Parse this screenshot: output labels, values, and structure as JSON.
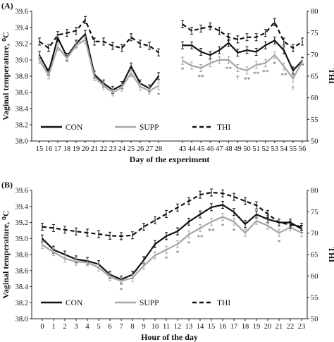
{
  "colors": {
    "con": "#111111",
    "supp": "#a6a6a6",
    "thi": "#111111"
  },
  "chart_data": [
    {
      "type": "line",
      "panel_label": "(A)",
      "xlabel": "Day of the experiment",
      "ylabel": "Vaginal temperature, ⁰C",
      "y2label": "THI",
      "ylim": [
        38.0,
        39.6
      ],
      "y_ticks": [
        "38.0",
        "38.2",
        "38.4",
        "38.6",
        "38.8",
        "39.0",
        "39.2",
        "39.4",
        "39.6"
      ],
      "y2lim": [
        50,
        80
      ],
      "y2_ticks": [
        "50",
        "55",
        "60",
        "65",
        "70",
        "75",
        "80"
      ],
      "grid": false,
      "legend": "bottom-left",
      "legend_entries": [
        "CON",
        "SUPP",
        "THI"
      ],
      "x_segments": [
        [
          15,
          16,
          17,
          18,
          19,
          20,
          21,
          22,
          23,
          24,
          25,
          26,
          27,
          28
        ],
        [
          43,
          44,
          45,
          46,
          47,
          48,
          49,
          50,
          51,
          52,
          53,
          54,
          55,
          56
        ]
      ],
      "x_tick_labels": [
        [
          "15",
          "16",
          "17",
          "18",
          "19",
          "20",
          "21",
          "22",
          "23",
          "24",
          "25",
          "26",
          "27",
          "28"
        ],
        [
          "43",
          "44",
          "45",
          "46",
          "47",
          "48",
          "49",
          "50",
          "51",
          "52",
          "53",
          "54",
          "55",
          "56"
        ]
      ],
      "series": [
        {
          "name": "CON",
          "axis": "left",
          "segments": [
            [
              39.06,
              38.85,
              39.27,
              39.04,
              39.2,
              39.32,
              38.82,
              38.71,
              38.63,
              38.69,
              38.92,
              38.71,
              38.65,
              38.8
            ],
            [
              39.18,
              39.18,
              39.1,
              39.06,
              39.12,
              39.21,
              39.09,
              39.12,
              39.1,
              39.18,
              39.24,
              39.12,
              38.87,
              38.99
            ]
          ]
        },
        {
          "name": "SUPP",
          "axis": "left",
          "segments": [
            [
              39.0,
              38.81,
              39.16,
              39.02,
              39.18,
              39.25,
              38.79,
              38.68,
              38.6,
              38.66,
              38.84,
              38.67,
              38.62,
              38.68
            ],
            [
              38.99,
              38.93,
              38.9,
              38.96,
              39.0,
              39.0,
              38.9,
              38.87,
              38.94,
              38.96,
              39.06,
              38.92,
              38.77,
              38.98
            ]
          ]
        },
        {
          "name": "THI",
          "axis": "right",
          "segments": [
            [
              73,
              71.5,
              74.5,
              75,
              75.5,
              78,
              73,
              73,
              72,
              71.5,
              74,
              72.5,
              72,
              70.5
            ],
            [
              77,
              75.5,
              76,
              76.5,
              75.5,
              74,
              73.5,
              74,
              74,
              75,
              77.5,
              73,
              71.5,
              73
            ]
          ]
        }
      ],
      "annotations": [
        {
          "x": 28,
          "text": "*"
        },
        {
          "x": 43,
          "text": "*"
        },
        {
          "x": 45,
          "text": "**"
        },
        {
          "x": 48,
          "text": "**"
        },
        {
          "x": 49,
          "text": "†"
        },
        {
          "x": 50,
          "text": "**"
        },
        {
          "x": 51,
          "text": "**"
        },
        {
          "x": 52,
          "text": "**"
        },
        {
          "x": 53,
          "text": "*"
        },
        {
          "x": 54,
          "text": "**"
        },
        {
          "x": 55,
          "text": "†"
        }
      ]
    },
    {
      "type": "line",
      "panel_label": "(B)",
      "xlabel": "Hour of the day",
      "ylabel": "Vaginal temperature, ⁰C",
      "y2label": "THI",
      "ylim": [
        38.0,
        39.6
      ],
      "y_ticks": [
        "38.0",
        "38.2",
        "38.4",
        "38.6",
        "38.8",
        "39.0",
        "39.2",
        "39.4",
        "39.6"
      ],
      "y2lim": [
        50,
        80
      ],
      "y2_ticks": [
        "50",
        "55",
        "60",
        "65",
        "70",
        "75",
        "80"
      ],
      "grid": false,
      "legend": "bottom-left",
      "legend_entries": [
        "CON",
        "SUPP",
        "THI"
      ],
      "x_segments": [
        [
          0,
          1,
          2,
          3,
          4,
          5,
          6,
          7,
          8,
          9,
          10,
          11,
          12,
          13,
          14,
          15,
          16,
          17,
          18,
          19,
          20,
          21,
          22,
          23
        ]
      ],
      "x_tick_labels": [
        [
          "0",
          "1",
          "2",
          "3",
          "4",
          "5",
          "6",
          "7",
          "8",
          "9",
          "10",
          "11",
          "12",
          "13",
          "14",
          "15",
          "16",
          "17",
          "18",
          "19",
          "20",
          "21",
          "22",
          "23"
        ]
      ],
      "series": [
        {
          "name": "CON",
          "axis": "left",
          "segments": [
            [
              39.0,
              38.86,
              38.8,
              38.74,
              38.72,
              38.68,
              38.55,
              38.49,
              38.55,
              38.73,
              38.93,
              39.03,
              39.09,
              39.21,
              39.3,
              39.39,
              39.42,
              39.33,
              39.18,
              39.3,
              39.24,
              39.2,
              39.2,
              39.12
            ]
          ]
        },
        {
          "name": "SUPP",
          "axis": "left",
          "segments": [
            [
              38.92,
              38.83,
              38.75,
              38.71,
              38.7,
              38.64,
              38.52,
              38.47,
              38.51,
              38.66,
              38.79,
              38.86,
              38.93,
              39.05,
              39.13,
              39.21,
              39.27,
              39.21,
              39.07,
              39.22,
              39.16,
              39.07,
              39.14,
              39.07
            ]
          ]
        },
        {
          "name": "THI",
          "axis": "right",
          "segments": [
            [
              71.5,
              71.2,
              70.8,
              70.4,
              70.1,
              69.8,
              69.4,
              69.3,
              69.5,
              71.5,
              73,
              74.5,
              76,
              77.5,
              79,
              79.5,
              79.3,
              78.5,
              77.5,
              76.5,
              74.5,
              72.5,
              72,
              71.5
            ]
          ]
        }
      ],
      "annotations": [
        {
          "x": 7,
          "text": "*"
        },
        {
          "x": 11,
          "text": "*"
        },
        {
          "x": 12,
          "text": "*"
        },
        {
          "x": 13,
          "text": "*"
        },
        {
          "x": 14,
          "text": "**"
        },
        {
          "x": 15,
          "text": "**"
        },
        {
          "x": 16,
          "text": "*"
        },
        {
          "x": 17,
          "text": "*"
        },
        {
          "x": 21,
          "text": "*"
        }
      ]
    }
  ]
}
